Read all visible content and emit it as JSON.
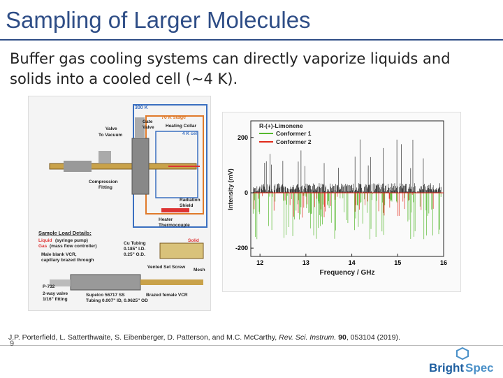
{
  "slide": {
    "title": "Sampling of Larger Molecules",
    "body": "Buffer gas cooling systems can directly vaporize liquids and solids into a cooled cell (~4 K).",
    "page_number": "9",
    "citation": {
      "authors": "J.P. Porterfield, L. Satterthwaite, S. Eibenberger, D. Patterson, and M.C. McCarthy,",
      "journal": "Rev. Sci. Instrum.",
      "volume": "90",
      "pages_year": ", 053104 (2019)."
    }
  },
  "diagram": {
    "labels": {
      "k300": "300 K",
      "k70": "70 K stage",
      "gate_valve": "Gate",
      "gate_valve2": "Valve",
      "valve": "Valve",
      "to_vacuum": "To Vacuum",
      "heating_collar": "Heating Collar",
      "k4_cell": "4 K cell",
      "compression": "Compression",
      "fitting": "Fitting",
      "radiation": "Radiation",
      "shield": "Shield",
      "heater": "Heater",
      "thermocouple": "Thermocouple",
      "sample_load": "Sample Load Details:",
      "liquid": "Liquid",
      "liquid_desc": "(syringe pump)",
      "gas": "Gas",
      "gas_desc": "(mass flow controller)",
      "male_blank": "Male blank VCR,",
      "capillary": "capillary brazed through",
      "cu_tubing": "Cu Tubing",
      "cu_id": "0.185\" I.D.",
      "cu_od": "0.25\" O.D.",
      "solid": "Solid",
      "vented": "Vented Set Screw",
      "mesh": "Mesh",
      "p732": "P-732",
      "two_way": "2-way valve",
      "fitting16": "1/16\" fitting",
      "supelco": "Supelco 56717 SS",
      "tubing": "Tubing 0.007\" ID, 0.0625\" OD",
      "brazed": "Brazed female VCR"
    }
  },
  "chart_data": {
    "type": "line",
    "title": "R-(+)-Limonene",
    "xlabel": "Frequency / GHz",
    "ylabel": "Intensity (mV)",
    "xlim": [
      11.8,
      16
    ],
    "ylim": [
      -230,
      260
    ],
    "x_ticks": [
      "12",
      "13",
      "14",
      "15",
      "16"
    ],
    "y_ticks": [
      "200",
      "0",
      "-200"
    ],
    "legend_position": "top-left",
    "series": [
      {
        "name": "Conformer 1",
        "color": "#55b82e"
      },
      {
        "name": "Conformer 2",
        "color": "#e02a1a"
      }
    ],
    "spectrum_color": "#111111"
  },
  "logo": {
    "text_a": "Bright",
    "text_b": "Spec",
    "color_a": "#1f5fa0",
    "color_b": "#4a90c8"
  }
}
